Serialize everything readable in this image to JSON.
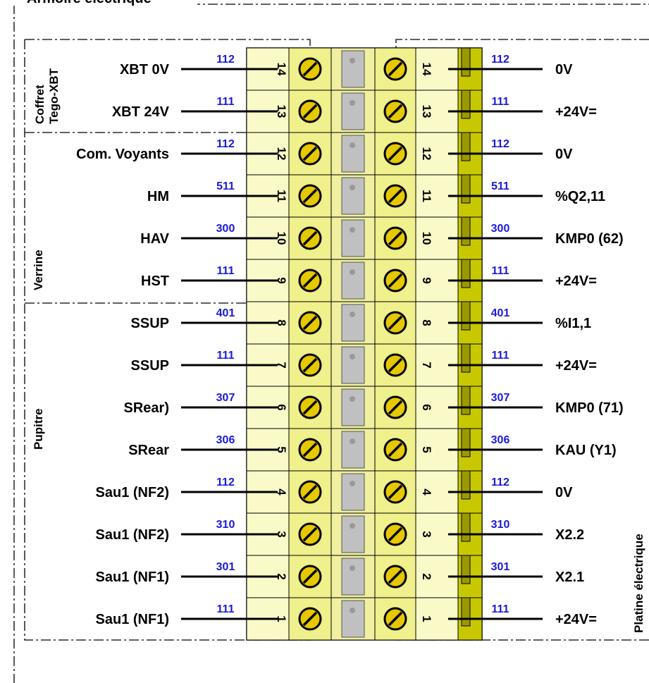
{
  "cabinet_title": "Armoire  électrique",
  "groups": {
    "coffret": [
      "Coffret",
      "Tego-XBT"
    ],
    "verrine": "Verrine",
    "pupitre": "Pupitre",
    "platine": "Platine électrique"
  },
  "colors": {
    "terminal_light": "#fafac8",
    "terminal_body": "#f0f08c",
    "terminal_rail": "#c8c800",
    "screw": "#e6c800",
    "bridge": "#c0c0c0",
    "wire_label": "#1a1adc"
  },
  "terminals": [
    {
      "num": "14",
      "left": "XBT 0V",
      "left_wire": "112",
      "right_wire": "112",
      "right": "0V"
    },
    {
      "num": "13",
      "left": "XBT 24V",
      "left_wire": "111",
      "right_wire": "111",
      "right": "+24V="
    },
    {
      "num": "12",
      "left": "Com. Voyants",
      "left_wire": "112",
      "right_wire": "112",
      "right": "0V"
    },
    {
      "num": "11",
      "left": "HM",
      "left_wire": "511",
      "right_wire": "511",
      "right": "%Q2,11"
    },
    {
      "num": "10",
      "left": "HAV",
      "left_wire": "300",
      "right_wire": "300",
      "right": "KMP0 (62)"
    },
    {
      "num": "9",
      "left": "HST",
      "left_wire": "111",
      "right_wire": "111",
      "right": "+24V="
    },
    {
      "num": "8",
      "left": "SSUP",
      "left_wire": "401",
      "right_wire": "401",
      "right": "%I1,1"
    },
    {
      "num": "7",
      "left": "SSUP",
      "left_wire": "111",
      "right_wire": "111",
      "right": "+24V="
    },
    {
      "num": "6",
      "left": "SRear)",
      "left_wire": "307",
      "right_wire": "307",
      "right": "KMP0 (71)"
    },
    {
      "num": "5",
      "left": "SRear",
      "left_wire": "306",
      "right_wire": "306",
      "right": "KAU (Y1)"
    },
    {
      "num": "4",
      "left": "Sau1 (NF2)",
      "left_wire": "112",
      "right_wire": "112",
      "right": "0V"
    },
    {
      "num": "3",
      "left": "Sau1 (NF2)",
      "left_wire": "310",
      "right_wire": "310",
      "right": "X2.2"
    },
    {
      "num": "2",
      "left": "Sau1 (NF1)",
      "left_wire": "301",
      "right_wire": "301",
      "right": "X2.1"
    },
    {
      "num": "1",
      "left": "Sau1 (NF1)",
      "left_wire": "111",
      "right_wire": "111",
      "right": "+24V="
    }
  ]
}
